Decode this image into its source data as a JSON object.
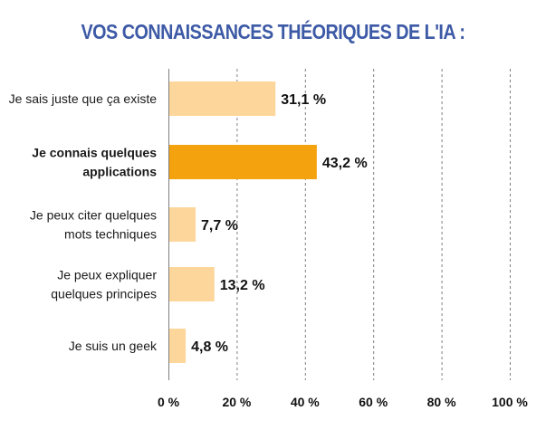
{
  "chart_data": {
    "type": "bar",
    "orientation": "horizontal",
    "title": "VOS CONNAISSANCES THÉORIQUES DE L'IA :",
    "categories": [
      [
        "Je sais juste que ça existe"
      ],
      [
        "Je connais quelques",
        "applications"
      ],
      [
        "Je peux citer quelques",
        "mots techniques"
      ],
      [
        "Je peux expliquer",
        "quelques principes"
      ],
      [
        "Je suis un geek"
      ]
    ],
    "values": [
      31.1,
      43.2,
      7.7,
      13.2,
      4.8
    ],
    "value_labels": [
      "31,1 %",
      "43,2 %",
      "7,7 %",
      "13,2 %",
      "4,8 %"
    ],
    "highlighted_index": 1,
    "xlim": [
      0,
      100
    ],
    "x_ticks": [
      0,
      20,
      40,
      60,
      80,
      100
    ],
    "x_tick_labels": [
      "0 %",
      "20 %",
      "40 %",
      "60 %",
      "80 %",
      "100 %"
    ],
    "xlabel": "",
    "ylabel": "",
    "grid": true,
    "colors": {
      "bar": "#fdd69b",
      "bar_highlight": "#f5a20f",
      "title": "#3d5aa6",
      "grid": "#7f7f7f"
    }
  }
}
